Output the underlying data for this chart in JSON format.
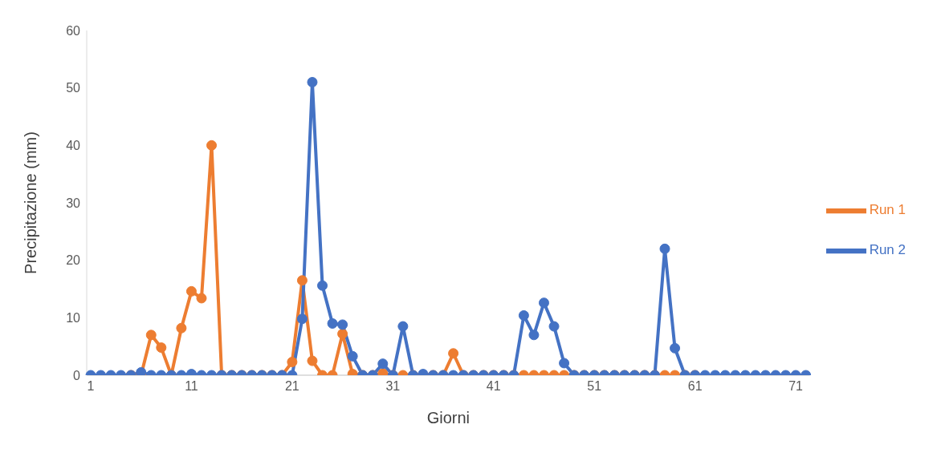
{
  "chart_data": {
    "type": "line",
    "xlabel": "Giorni",
    "ylabel": "Precipitazione (mm)",
    "categories": [
      "1",
      null,
      null,
      null,
      null,
      null,
      null,
      null,
      null,
      null,
      "11",
      null,
      null,
      null,
      null,
      null,
      null,
      null,
      null,
      null,
      "21",
      null,
      null,
      null,
      null,
      null,
      null,
      null,
      null,
      null,
      "31",
      null,
      null,
      null,
      null,
      null,
      null,
      null,
      null,
      null,
      "41",
      null,
      null,
      null,
      null,
      null,
      null,
      null,
      null,
      null,
      "51",
      null,
      null,
      null,
      null,
      null,
      null,
      null,
      null,
      null,
      "61",
      null,
      null,
      null,
      null,
      null,
      null,
      null,
      null,
      null,
      "71",
      null
    ],
    "series": [
      {
        "name": "Run 1",
        "color": "#ed7d31",
        "values": [
          null,
          null,
          null,
          null,
          0,
          0,
          7,
          4.8,
          0,
          8.2,
          14.6,
          13.4,
          40,
          0,
          0,
          0,
          0,
          0,
          0,
          0,
          2.3,
          16.5,
          2.5,
          0,
          0,
          7.2,
          0.2,
          0,
          0,
          0.3,
          0,
          0,
          0,
          0,
          0,
          0,
          3.8,
          0,
          0,
          0,
          0,
          0,
          0,
          0,
          0,
          0,
          0,
          0,
          0,
          0,
          0,
          0,
          0,
          0,
          0,
          0,
          0,
          0,
          0,
          0,
          0,
          null,
          null,
          null,
          null,
          null,
          null,
          null,
          null,
          null,
          null,
          null
        ]
      },
      {
        "name": "Run 2",
        "color": "#4472c4",
        "values": [
          0,
          0,
          0,
          0,
          0,
          0.5,
          0,
          0,
          0,
          0,
          0.2,
          0,
          0,
          0,
          0,
          0,
          0,
          0,
          0,
          0,
          0,
          9.8,
          51,
          15.6,
          9,
          8.8,
          3.3,
          0,
          0,
          2,
          0,
          8.5,
          0,
          0.2,
          0,
          0,
          0,
          0,
          0,
          0,
          0,
          0,
          0,
          10.4,
          7,
          12.6,
          8.5,
          2.1,
          0,
          0,
          0,
          0,
          0,
          0,
          0,
          0,
          0,
          22,
          4.7,
          0,
          0,
          0,
          0,
          0,
          0,
          0,
          0,
          0,
          0,
          0,
          0,
          0
        ]
      }
    ],
    "ylim": [
      0,
      60
    ],
    "yticks": [
      0,
      10,
      20,
      30,
      40,
      50,
      60
    ],
    "grid": false,
    "legend": "right",
    "marker": "circle",
    "line_style": "solid"
  }
}
